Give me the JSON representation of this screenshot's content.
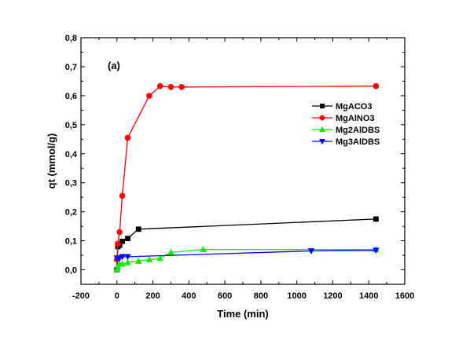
{
  "chart_data": {
    "type": "line",
    "panel_label": "(a)",
    "xlabel": "Time (min)",
    "ylabel": "qt (mmol/g)",
    "xlim": [
      -200,
      1600
    ],
    "ylim": [
      -0.05,
      0.8
    ],
    "xticks": [
      -200,
      0,
      200,
      400,
      600,
      800,
      1000,
      1200,
      1400,
      1600
    ],
    "yticks": [
      "0,0",
      "0,1",
      "0,2",
      "0,3",
      "0,4",
      "0,5",
      "0,6",
      "0,7",
      "0,8"
    ],
    "ytick_values": [
      0,
      0.1,
      0.2,
      0.3,
      0.4,
      0.5,
      0.6,
      0.7,
      0.8
    ],
    "legend_position": "right",
    "grid": false,
    "series": [
      {
        "name": "MgACO3",
        "color": "#000000",
        "marker": "square",
        "x": [
          0,
          5,
          15,
          30,
          60,
          120,
          1440
        ],
        "y": [
          0.0,
          0.08,
          0.085,
          0.098,
          0.108,
          0.14,
          0.175
        ]
      },
      {
        "name": "MgAlNO3",
        "color": "#ff0000",
        "marker": "circle",
        "x": [
          0,
          5,
          15,
          30,
          60,
          180,
          240,
          300,
          360,
          1440
        ],
        "y": [
          0.035,
          0.09,
          0.13,
          0.255,
          0.455,
          0.6,
          0.633,
          0.63,
          0.63,
          0.633
        ]
      },
      {
        "name": "Mg2AlDBS",
        "color": "#00ee00",
        "marker": "triangle-up",
        "x": [
          0,
          5,
          15,
          30,
          60,
          120,
          180,
          240,
          300,
          480,
          1440
        ],
        "y": [
          0.0,
          0.01,
          0.02,
          0.02,
          0.025,
          0.03,
          0.035,
          0.04,
          0.06,
          0.07,
          0.07
        ]
      },
      {
        "name": "Mg3AlDBS",
        "color": "#0000ff",
        "marker": "triangle-down",
        "x": [
          0,
          5,
          15,
          30,
          60,
          1080,
          1440
        ],
        "y": [
          0.04,
          0.04,
          0.04,
          0.045,
          0.045,
          0.065,
          0.067
        ]
      }
    ]
  }
}
